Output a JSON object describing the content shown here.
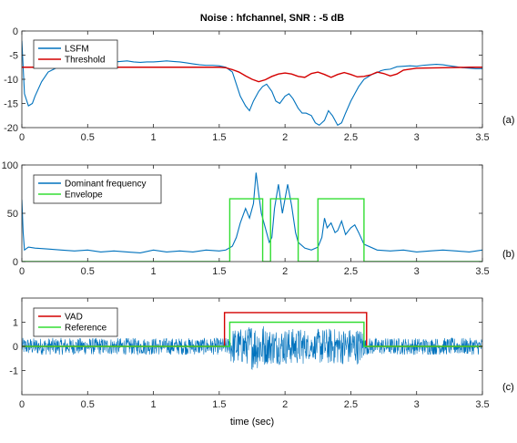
{
  "figure_title": "Noise : hfchannel, SNR : -5 dB",
  "chart_data": [
    {
      "type": "line",
      "panel_label": "(a)",
      "xlim": [
        0,
        3.5
      ],
      "ylim": [
        -20,
        0
      ],
      "xticks": [
        0,
        0.5,
        1,
        1.5,
        2,
        2.5,
        3,
        3.5
      ],
      "xtick_labels": [
        "0",
        "0.5",
        "1",
        "1.5",
        "2",
        "2.5",
        "3",
        "3.5"
      ],
      "yticks": [
        -20,
        -15,
        -10,
        -5,
        0
      ],
      "ytick_labels": [
        "-20",
        "-15",
        "-10",
        "-5",
        "0"
      ],
      "legend_position": "top-left",
      "series": [
        {
          "name": "LSFM",
          "color": "#0072BD",
          "x": [
            0,
            0.02,
            0.05,
            0.08,
            0.1,
            0.15,
            0.2,
            0.25,
            0.3,
            0.35,
            0.4,
            0.45,
            0.5,
            0.55,
            0.6,
            0.65,
            0.7,
            0.75,
            0.8,
            0.85,
            0.9,
            0.95,
            1.0,
            1.05,
            1.1,
            1.15,
            1.2,
            1.25,
            1.3,
            1.35,
            1.4,
            1.45,
            1.5,
            1.55,
            1.6,
            1.63,
            1.66,
            1.7,
            1.73,
            1.76,
            1.8,
            1.83,
            1.86,
            1.9,
            1.93,
            1.96,
            2.0,
            2.03,
            2.06,
            2.1,
            2.13,
            2.16,
            2.2,
            2.23,
            2.26,
            2.3,
            2.33,
            2.36,
            2.4,
            2.43,
            2.46,
            2.5,
            2.53,
            2.56,
            2.6,
            2.63,
            2.66,
            2.7,
            2.73,
            2.76,
            2.8,
            2.85,
            2.9,
            2.95,
            3.0,
            3.05,
            3.1,
            3.15,
            3.2,
            3.25,
            3.3,
            3.35,
            3.4,
            3.45,
            3.5
          ],
          "y": [
            -2,
            -13,
            -15.5,
            -15,
            -13.5,
            -10.5,
            -8.5,
            -7.8,
            -7.2,
            -6.6,
            -6.4,
            -6.2,
            -6.3,
            -6.4,
            -6.4,
            -6.5,
            -6.4,
            -6.3,
            -6.2,
            -6.4,
            -6.5,
            -6.4,
            -6.4,
            -6.3,
            -6.2,
            -6.3,
            -6.4,
            -6.6,
            -6.8,
            -7.0,
            -7.1,
            -7.1,
            -7.2,
            -7.5,
            -8.5,
            -11,
            -13.5,
            -15.5,
            -16.5,
            -14.5,
            -12.5,
            -11.5,
            -11.0,
            -12.5,
            -14.5,
            -15.0,
            -13.5,
            -13.0,
            -14.0,
            -16.0,
            -17.0,
            -17.0,
            -17.5,
            -19.0,
            -19.5,
            -18.5,
            -16.5,
            -17.5,
            -19.5,
            -19.0,
            -17.0,
            -14.5,
            -13.0,
            -11.5,
            -10.0,
            -9.5,
            -9.0,
            -8.6,
            -8.2,
            -8.0,
            -7.9,
            -7.4,
            -7.3,
            -7.2,
            -7.3,
            -7.1,
            -7.0,
            -6.9,
            -7.0,
            -7.2,
            -7.4,
            -7.6,
            -7.7,
            -7.8,
            -7.8
          ]
        },
        {
          "name": "Threshold",
          "color": "#D40000",
          "x": [
            0,
            0.2,
            0.4,
            0.6,
            0.8,
            1.0,
            1.2,
            1.4,
            1.5,
            1.55,
            1.6,
            1.65,
            1.7,
            1.75,
            1.8,
            1.85,
            1.9,
            1.95,
            2.0,
            2.05,
            2.1,
            2.15,
            2.2,
            2.25,
            2.3,
            2.35,
            2.4,
            2.45,
            2.5,
            2.55,
            2.6,
            2.65,
            2.7,
            2.75,
            2.8,
            2.85,
            2.9,
            3.0,
            3.2,
            3.4,
            3.5
          ],
          "y": [
            -7.5,
            -7.5,
            -7.5,
            -7.5,
            -7.5,
            -7.5,
            -7.5,
            -7.5,
            -7.5,
            -7.6,
            -8.0,
            -8.5,
            -9.3,
            -10.0,
            -10.5,
            -10.1,
            -9.4,
            -8.9,
            -8.7,
            -8.9,
            -9.4,
            -9.6,
            -8.8,
            -8.5,
            -9.0,
            -9.6,
            -9.0,
            -8.6,
            -9.0,
            -9.5,
            -9.4,
            -9.1,
            -8.5,
            -8.8,
            -9.3,
            -8.9,
            -8.1,
            -7.7,
            -7.6,
            -7.5,
            -7.5
          ]
        }
      ]
    },
    {
      "type": "line",
      "panel_label": "(b)",
      "xlim": [
        0,
        3.5
      ],
      "ylim": [
        0,
        100
      ],
      "xticks": [
        0,
        0.5,
        1,
        1.5,
        2,
        2.5,
        3,
        3.5
      ],
      "xtick_labels": [
        "0",
        "0.5",
        "1",
        "1.5",
        "2",
        "2.5",
        "3",
        "3.5"
      ],
      "yticks": [
        0,
        50,
        100
      ],
      "ytick_labels": [
        "0",
        "50",
        "100"
      ],
      "legend_position": "top-left",
      "series": [
        {
          "name": "Dominant frequency",
          "color": "#0072BD",
          "x": [
            0,
            0.01,
            0.02,
            0.05,
            0.1,
            0.2,
            0.3,
            0.4,
            0.5,
            0.6,
            0.7,
            0.8,
            0.9,
            1.0,
            1.1,
            1.2,
            1.3,
            1.4,
            1.5,
            1.55,
            1.6,
            1.63,
            1.66,
            1.7,
            1.73,
            1.76,
            1.78,
            1.8,
            1.82,
            1.85,
            1.88,
            1.9,
            1.92,
            1.95,
            1.98,
            2.0,
            2.02,
            2.05,
            2.08,
            2.1,
            2.15,
            2.2,
            2.25,
            2.28,
            2.3,
            2.32,
            2.35,
            2.38,
            2.4,
            2.43,
            2.46,
            2.5,
            2.53,
            2.56,
            2.6,
            2.7,
            2.8,
            2.9,
            3.0,
            3.1,
            3.2,
            3.3,
            3.4,
            3.5
          ],
          "y": [
            64,
            30,
            12,
            15,
            14,
            13,
            12,
            11,
            12,
            10,
            11,
            10,
            9,
            12,
            10,
            11,
            10,
            12,
            11,
            12,
            16,
            25,
            40,
            55,
            45,
            60,
            92,
            70,
            50,
            35,
            20,
            25,
            55,
            80,
            50,
            65,
            80,
            58,
            30,
            20,
            14,
            12,
            15,
            25,
            45,
            35,
            40,
            30,
            32,
            42,
            28,
            35,
            38,
            30,
            18,
            12,
            11,
            12,
            10,
            11,
            12,
            11,
            10,
            12
          ]
        },
        {
          "name": "Envelope",
          "color": "#33DD33",
          "x": [
            0,
            1.58,
            1.58,
            1.83,
            1.83,
            1.89,
            1.89,
            2.1,
            2.1,
            2.25,
            2.25,
            2.6,
            2.6,
            3.5
          ],
          "y": [
            0,
            0,
            65,
            65,
            0,
            0,
            65,
            65,
            0,
            0,
            65,
            65,
            0,
            0
          ]
        }
      ]
    },
    {
      "type": "line",
      "panel_label": "(c)",
      "xlim": [
        0,
        3.5
      ],
      "ylim": [
        -2,
        2
      ],
      "xlabel": "time (sec)",
      "xticks": [
        0,
        0.5,
        1,
        1.5,
        2,
        2.5,
        3,
        3.5
      ],
      "xtick_labels": [
        "0",
        "0.5",
        "1",
        "1.5",
        "2",
        "2.5",
        "3",
        "3.5"
      ],
      "yticks": [
        -1,
        0,
        1
      ],
      "ytick_labels": [
        "-1",
        "0",
        "1"
      ],
      "legend_position": "top-left",
      "signal_color": "#0072BD",
      "series": [
        {
          "name": "VAD",
          "color": "#D40000",
          "x": [
            0,
            1.54,
            1.54,
            2.62,
            2.62,
            3.5
          ],
          "y": [
            0,
            0,
            1.4,
            1.4,
            0,
            0
          ]
        },
        {
          "name": "Reference",
          "color": "#33DD33",
          "x": [
            0,
            1.58,
            1.58,
            2.6,
            2.6,
            3.5
          ],
          "y": [
            0,
            0,
            1,
            1,
            0,
            0
          ]
        }
      ]
    }
  ]
}
